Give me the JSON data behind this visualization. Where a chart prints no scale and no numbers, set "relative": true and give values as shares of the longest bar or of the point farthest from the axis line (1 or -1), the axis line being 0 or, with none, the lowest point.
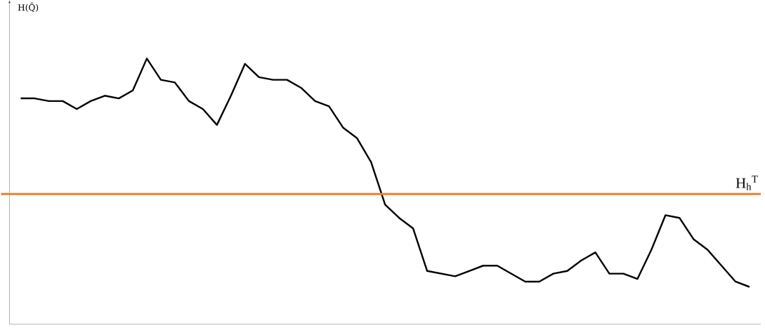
{
  "chart_data": {
    "type": "line",
    "relative": true,
    "annotations": [
      "H(Q̄)"
    ],
    "categories": [
      null,
      null,
      null,
      null,
      null,
      null,
      null,
      null,
      null,
      null,
      null,
      null,
      null,
      null,
      null,
      null,
      null,
      null,
      null,
      null,
      null,
      null,
      null,
      null,
      null,
      null,
      null,
      null,
      null,
      null,
      null,
      null,
      null,
      null,
      null,
      null,
      null,
      null,
      null,
      null,
      null,
      null,
      null,
      null,
      null,
      null,
      null,
      null,
      null,
      null,
      null,
      null,
      null
    ],
    "series": [
      {
        "color": "#000000",
        "values": [
          0.85,
          0.85,
          0.84,
          0.84,
          0.81,
          0.84,
          0.86,
          0.85,
          0.88,
          1.0,
          0.92,
          0.91,
          0.84,
          0.81,
          0.75,
          0.86,
          0.98,
          0.93,
          0.92,
          0.92,
          0.89,
          0.84,
          0.82,
          0.74,
          0.7,
          0.61,
          0.45,
          0.4,
          0.36,
          0.2,
          0.19,
          0.18,
          0.2,
          0.22,
          0.22,
          0.19,
          0.16,
          0.16,
          0.19,
          0.2,
          0.24,
          0.27,
          0.19,
          0.19,
          0.17,
          0.28,
          0.41,
          0.4,
          0.32,
          0.28,
          0.22,
          0.16,
          0.14
        ]
      }
    ],
    "ref_lines": [
      {
        "axis": "y",
        "value": 0.49,
        "label": "H$_{h}$$^{T}$",
        "color": "#f07f2a"
      }
    ],
    "marker": "none",
    "line_style": "solid"
  }
}
